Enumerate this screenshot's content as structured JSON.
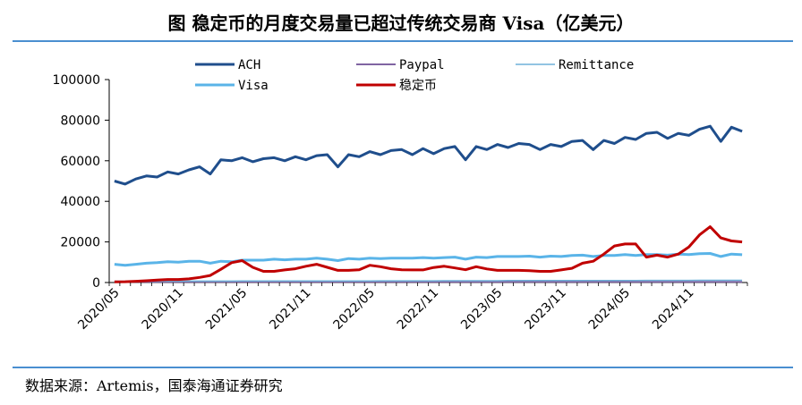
{
  "title": "图  稳定币的月度交易量已超过传统交易商 Visa（亿美元）",
  "source": "数据来源：Artemis，国泰海通证券研究",
  "chart_data": {
    "type": "line",
    "ylim": [
      0,
      100000
    ],
    "yticks": [
      0,
      20000,
      40000,
      60000,
      80000,
      100000
    ],
    "ytick_labels": [
      "0",
      "20000",
      "40000",
      "60000",
      "80000",
      "100000"
    ],
    "x_months": [
      "2020/05",
      "2020/06",
      "2020/07",
      "2020/08",
      "2020/09",
      "2020/10",
      "2020/11",
      "2020/12",
      "2021/01",
      "2021/02",
      "2021/03",
      "2021/04",
      "2021/05",
      "2021/06",
      "2021/07",
      "2021/08",
      "2021/09",
      "2021/10",
      "2021/11",
      "2021/12",
      "2022/01",
      "2022/02",
      "2022/03",
      "2022/04",
      "2022/05",
      "2022/06",
      "2022/07",
      "2022/08",
      "2022/09",
      "2022/10",
      "2022/11",
      "2022/12",
      "2023/01",
      "2023/02",
      "2023/03",
      "2023/04",
      "2023/05",
      "2023/06",
      "2023/07",
      "2023/08",
      "2023/09",
      "2023/10",
      "2023/11",
      "2023/12",
      "2024/01",
      "2024/02",
      "2024/03",
      "2024/04",
      "2024/05",
      "2024/06",
      "2024/07",
      "2024/08",
      "2024/09",
      "2024/10",
      "2024/11",
      "2024/12",
      "2025/01",
      "2025/02",
      "2025/03",
      "2025/04"
    ],
    "x_tick_labels": [
      "2020/05",
      "2020/11",
      "2021/05",
      "2021/11",
      "2022/05",
      "2022/11",
      "2023/05",
      "2023/11",
      "2024/05",
      "2024/11"
    ],
    "legend_position": "top",
    "series": [
      {
        "name": "ACH",
        "color": "#1f4e8c",
        "width": 3,
        "values": [
          50000,
          48500,
          51000,
          52500,
          52000,
          54500,
          53500,
          55500,
          57000,
          53500,
          60500,
          60000,
          61500,
          59500,
          61000,
          61500,
          60000,
          62000,
          60500,
          62500,
          63000,
          57000,
          63000,
          62000,
          64500,
          63000,
          65000,
          65500,
          63000,
          66000,
          63500,
          66000,
          67000,
          60500,
          67000,
          65500,
          68000,
          66500,
          68500,
          68000,
          65500,
          68000,
          67000,
          69500,
          70000,
          65500,
          70000,
          68500,
          71500,
          70500,
          73500,
          74000,
          71000,
          73500,
          72500,
          75500,
          77000,
          69500,
          76500,
          74500
        ]
      },
      {
        "name": "Paypal",
        "color": "#8064a2",
        "width": 2,
        "values": [
          300,
          300,
          300,
          300,
          300,
          300,
          300,
          300,
          300,
          300,
          300,
          300,
          300,
          300,
          300,
          300,
          300,
          300,
          300,
          300,
          300,
          300,
          300,
          300,
          300,
          300,
          300,
          300,
          300,
          300,
          300,
          300,
          300,
          300,
          300,
          300,
          300,
          300,
          300,
          300,
          300,
          300,
          300,
          300,
          300,
          300,
          300,
          300,
          300,
          300,
          300,
          300,
          300,
          300,
          300,
          300,
          300,
          300,
          300,
          300
        ]
      },
      {
        "name": "Remittance",
        "color": "#6fb0d8",
        "width": 1.5,
        "values": [
          600,
          600,
          600,
          650,
          650,
          650,
          650,
          700,
          700,
          700,
          700,
          700,
          750,
          750,
          750,
          750,
          750,
          800,
          800,
          800,
          800,
          800,
          800,
          800,
          800,
          850,
          850,
          850,
          850,
          850,
          850,
          900,
          900,
          900,
          900,
          900,
          900,
          950,
          950,
          950,
          950,
          950,
          950,
          1000,
          1000,
          1000,
          1000,
          1000,
          1000,
          1000,
          1050,
          1050,
          1050,
          1050,
          1050,
          1100,
          1100,
          1100,
          1100,
          1100
        ]
      },
      {
        "name": "Visa",
        "color": "#5ab4e8",
        "width": 3,
        "values": [
          9000,
          8500,
          9000,
          9500,
          9800,
          10200,
          10000,
          10500,
          10500,
          9500,
          10500,
          10200,
          11000,
          11000,
          11000,
          11500,
          11200,
          11500,
          11500,
          12000,
          11500,
          10800,
          11800,
          11500,
          12000,
          11800,
          12000,
          12000,
          12000,
          12300,
          12000,
          12300,
          12500,
          11500,
          12500,
          12300,
          12800,
          12800,
          12800,
          13000,
          12500,
          13000,
          12800,
          13300,
          13500,
          12800,
          13300,
          13300,
          13800,
          13300,
          13800,
          13800,
          13500,
          14000,
          13800,
          14200,
          14300,
          12800,
          14000,
          13700
        ]
      },
      {
        "name": "稳定币",
        "color": "#c00000",
        "width": 3,
        "values": [
          300,
          400,
          600,
          900,
          1200,
          1500,
          1500,
          1800,
          2500,
          3500,
          6500,
          9800,
          10800,
          7500,
          5500,
          5500,
          6200,
          6800,
          8000,
          9000,
          7500,
          6000,
          6000,
          6300,
          8500,
          7800,
          6800,
          6300,
          6200,
          6200,
          7400,
          8000,
          7200,
          6300,
          7800,
          6700,
          6000,
          6000,
          6000,
          5800,
          5500,
          5500,
          6200,
          7000,
          9500,
          10500,
          14000,
          18000,
          19000,
          19000,
          12500,
          13500,
          12500,
          14000,
          17500,
          23500,
          27500,
          22000,
          20500,
          20000
        ]
      }
    ]
  }
}
